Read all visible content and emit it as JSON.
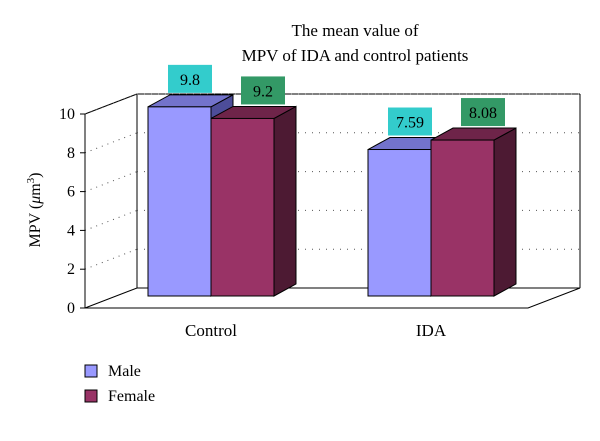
{
  "chart_data": {
    "type": "bar",
    "title_lines": [
      "The mean value of",
      "MPV of IDA and control patients"
    ],
    "ylabel": {
      "prefix": "MPV (",
      "greek": "μ",
      "unit": "m",
      "exponent": "3",
      "suffix": ")"
    },
    "xlabel": "",
    "categories": [
      "Control",
      "IDA"
    ],
    "series": [
      {
        "name": "Male",
        "values": [
          9.8,
          7.59
        ],
        "labels": [
          "9.8",
          "7.59"
        ]
      },
      {
        "name": "Female",
        "values": [
          9.2,
          8.08
        ],
        "labels": [
          "9.2",
          "8.08"
        ]
      }
    ],
    "ylim": [
      0,
      10
    ],
    "yticks": [
      0,
      2,
      4,
      6,
      8,
      10
    ],
    "grid": "dotted back wall",
    "style": "3d",
    "legend_position": "bottom-left",
    "colors": {
      "male_front": "#9999ff",
      "male_top": "#7373cc",
      "male_side": "#4d4d99",
      "female_front": "#993366",
      "female_top": "#6e2449",
      "female_side": "#4d1a33",
      "male_label_bg": "#33cccc",
      "female_label_bg": "#339966"
    }
  }
}
